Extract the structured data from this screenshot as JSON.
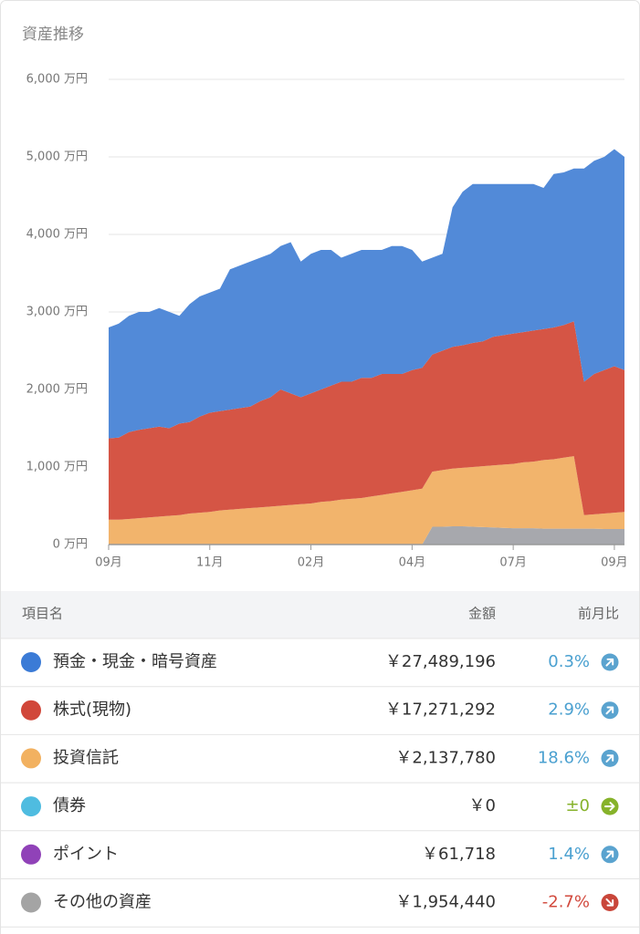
{
  "chart_data": {
    "type": "stacked_area",
    "title": "資産推移",
    "categories": [
      "09月",
      null,
      null,
      null,
      null,
      null,
      null,
      null,
      null,
      null,
      "11月",
      null,
      null,
      null,
      null,
      null,
      null,
      null,
      null,
      null,
      "02月",
      null,
      null,
      null,
      null,
      null,
      null,
      null,
      null,
      null,
      "04月",
      null,
      null,
      null,
      null,
      null,
      null,
      null,
      null,
      null,
      "07月",
      null,
      null,
      null,
      null,
      null,
      null,
      null,
      null,
      null,
      "09月",
      null
    ],
    "series": [
      {
        "color": "#a7a8ad",
        "values": [
          0,
          0,
          0,
          0,
          0,
          0,
          0,
          0,
          0,
          0,
          0,
          0,
          0,
          0,
          0,
          0,
          0,
          0,
          0,
          0,
          0,
          0,
          0,
          0,
          0,
          0,
          0,
          0,
          0,
          0,
          0,
          0,
          230,
          230,
          235,
          235,
          230,
          225,
          220,
          215,
          210,
          210,
          210,
          205,
          205,
          205,
          205,
          205,
          205,
          200,
          200,
          200
        ]
      },
      {
        "color": "#f2b46c",
        "values": [
          320,
          320,
          330,
          340,
          350,
          360,
          370,
          380,
          400,
          410,
          420,
          440,
          450,
          460,
          470,
          480,
          490,
          500,
          510,
          520,
          530,
          550,
          560,
          580,
          590,
          600,
          620,
          640,
          660,
          680,
          700,
          720,
          710,
          730,
          745,
          755,
          770,
          785,
          800,
          815,
          830,
          850,
          860,
          885,
          895,
          915,
          935,
          175,
          185,
          200,
          210,
          220
        ]
      },
      {
        "color": "#d55545",
        "values": [
          1050,
          1060,
          1120,
          1140,
          1150,
          1160,
          1130,
          1180,
          1180,
          1240,
          1280,
          1280,
          1290,
          1300,
          1310,
          1370,
          1410,
          1500,
          1440,
          1380,
          1420,
          1450,
          1490,
          1520,
          1510,
          1550,
          1530,
          1560,
          1540,
          1520,
          1550,
          1560,
          1510,
          1540,
          1570,
          1580,
          1600,
          1610,
          1660,
          1670,
          1680,
          1680,
          1690,
          1690,
          1700,
          1710,
          1740,
          1720,
          1810,
          1850,
          1890,
          1830
        ]
      },
      {
        "color": "#528ad8",
        "values": [
          1430,
          1470,
          1500,
          1520,
          1500,
          1530,
          1500,
          1390,
          1520,
          1550,
          1550,
          1580,
          1810,
          1840,
          1870,
          1850,
          1850,
          1850,
          1950,
          1750,
          1800,
          1800,
          1750,
          1600,
          1650,
          1650,
          1650,
          1600,
          1650,
          1650,
          1550,
          1370,
          1250,
          1250,
          1800,
          1980,
          2050,
          2030,
          1970,
          1950,
          1930,
          1910,
          1890,
          1820,
          1980,
          1970,
          1970,
          2750,
          2750,
          2750,
          2800,
          2750
        ]
      }
    ],
    "ylim": [
      0,
      6000
    ],
    "yticks": [
      {
        "value": 0,
        "label": "0 万円"
      },
      {
        "value": 1000,
        "label": "1,000 万円"
      },
      {
        "value": 2000,
        "label": "2,000 万円"
      },
      {
        "value": 3000,
        "label": "3,000 万円"
      },
      {
        "value": 4000,
        "label": "4,000 万円"
      },
      {
        "value": 5000,
        "label": "5,000 万円"
      },
      {
        "value": 6000,
        "label": "6,000 万円"
      }
    ],
    "grid": true
  },
  "table": {
    "header": [
      "項目名",
      "金額",
      "前月比"
    ],
    "rows": [
      {
        "name": "預金・現金・暗号資産",
        "amount": "￥27,489,196",
        "change": "0.3%",
        "dot": "#3b7bd6",
        "change_color": "#4aa0d0",
        "icon": "up",
        "icon_color": "#5aa3cf"
      },
      {
        "name": "株式(現物)",
        "amount": "￥17,271,292",
        "change": "2.9%",
        "dot": "#d1473a",
        "change_color": "#4aa0d0",
        "icon": "up",
        "icon_color": "#5aa3cf"
      },
      {
        "name": "投資信託",
        "amount": "￥2,137,780",
        "change": "18.6%",
        "dot": "#f2b160",
        "change_color": "#4aa0d0",
        "icon": "up",
        "icon_color": "#5aa3cf"
      },
      {
        "name": "債券",
        "amount": "￥0",
        "change": "±0",
        "dot": "#4fbce0",
        "change_color": "#86b22a",
        "icon": "flat",
        "icon_color": "#86b22a"
      },
      {
        "name": "ポイント",
        "amount": "￥61,718",
        "change": "1.4%",
        "dot": "#9042b8",
        "change_color": "#4aa0d0",
        "icon": "up",
        "icon_color": "#5aa3cf"
      },
      {
        "name": "その他の資産",
        "amount": "￥1,954,440",
        "change": "-2.7%",
        "dot": "#a4a4a4",
        "change_color": "#d24a3e",
        "icon": "down",
        "icon_color": "#c9463a"
      }
    ]
  }
}
